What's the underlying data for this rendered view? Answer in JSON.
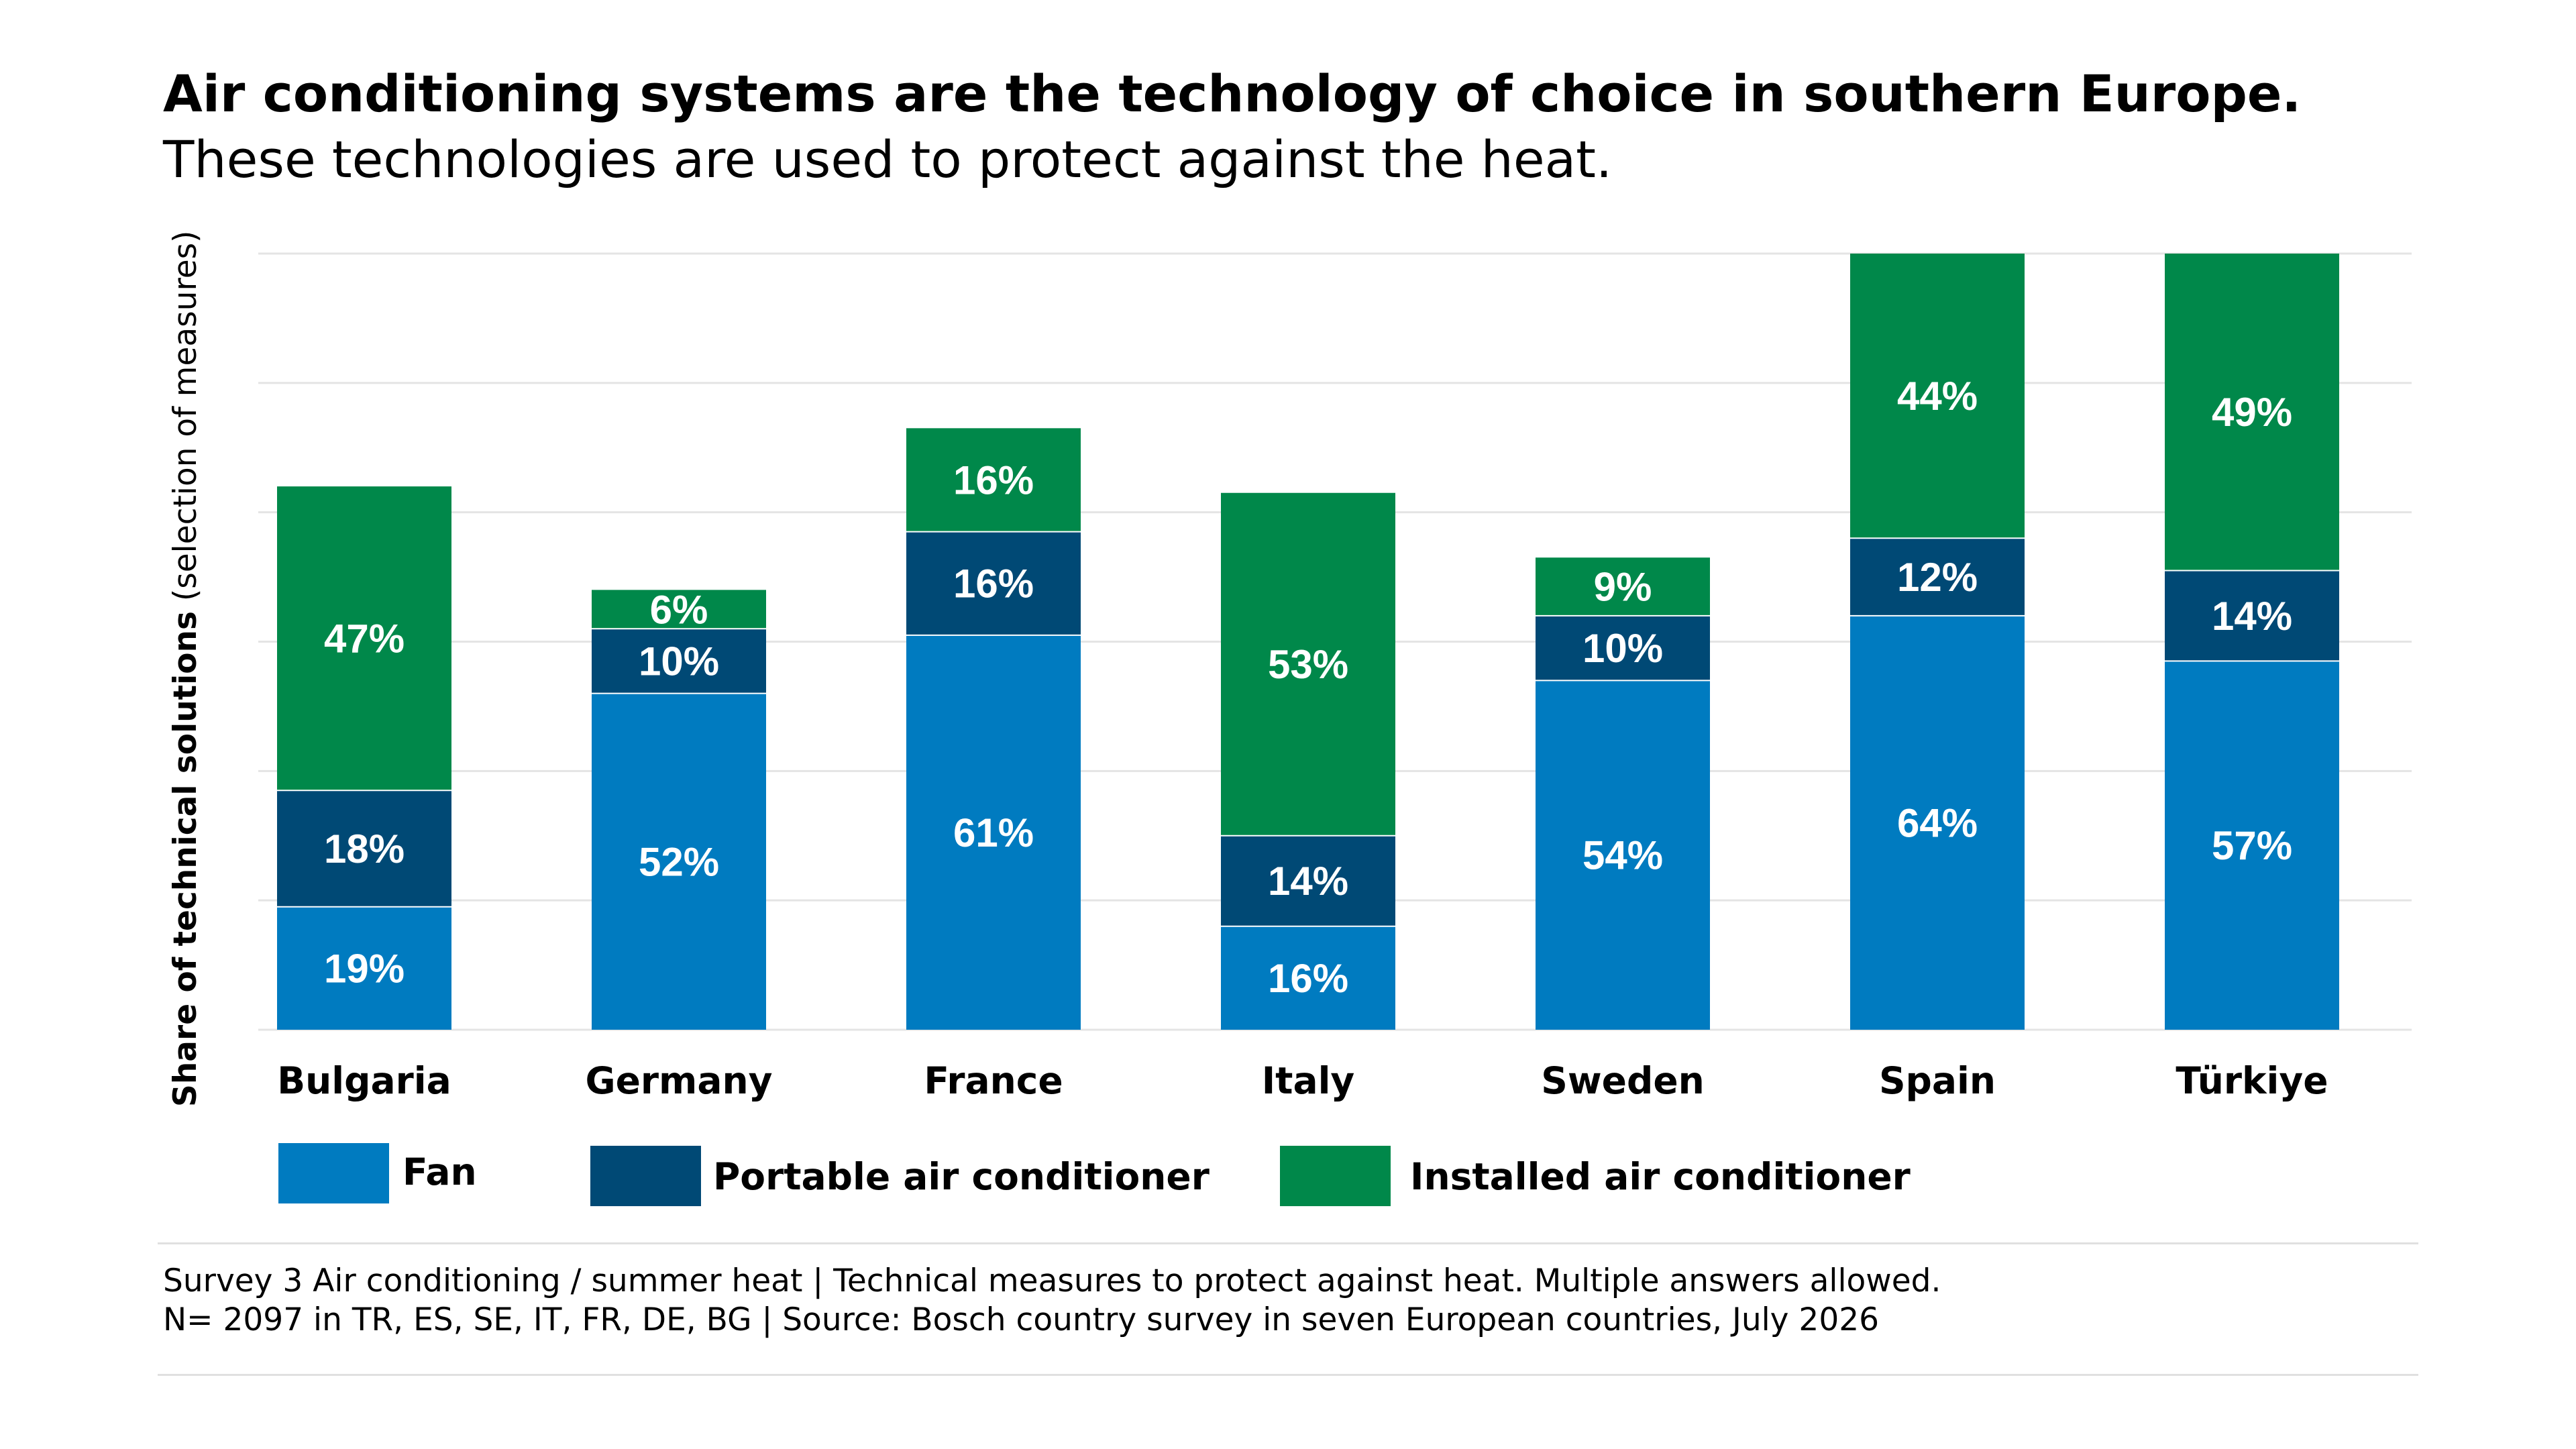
{
  "title": "Air conditioning systems are the technology of choice in southern Europe.",
  "subtitle": "These technologies are used to protect against the heat.",
  "chart_data": {
    "type": "bar",
    "stacked": true,
    "title": "Air conditioning systems are the technology of choice in southern Europe.",
    "subtitle": "These technologies are used to protect against the heat.",
    "ylabel_bold": "Share of technical solutions",
    "ylabel_rest": " (selection of measures)",
    "xlabel": "",
    "ylim": [
      0,
      120
    ],
    "grid": true,
    "legend_position": "bottom",
    "categories": [
      "Bulgaria",
      "Germany",
      "France",
      "Italy",
      "Sweden",
      "Spain",
      "Türkiye"
    ],
    "series": [
      {
        "name": "Fan",
        "color": "#007bc0",
        "values": [
          19,
          52,
          61,
          16,
          54,
          64,
          57
        ]
      },
      {
        "name": "Portable air conditioner",
        "color": "#004975",
        "values": [
          18,
          10,
          16,
          14,
          10,
          12,
          14
        ]
      },
      {
        "name": "Installed air conditioner",
        "color": "#00884a",
        "values": [
          47,
          6,
          16,
          53,
          9,
          44,
          49
        ]
      }
    ],
    "value_suffix": "%"
  },
  "footer": {
    "line1_a": "Survey 3 Air conditioning / summer heat | ",
    "line1_b": "Technical measures to protect against heat.",
    "line1_c": " Multiple answers allowed.",
    "line2": "N= 2097 in TR, ES, SE, IT, FR, DE, BG | Source: Bosch country survey in seven European countries, July 2026"
  }
}
